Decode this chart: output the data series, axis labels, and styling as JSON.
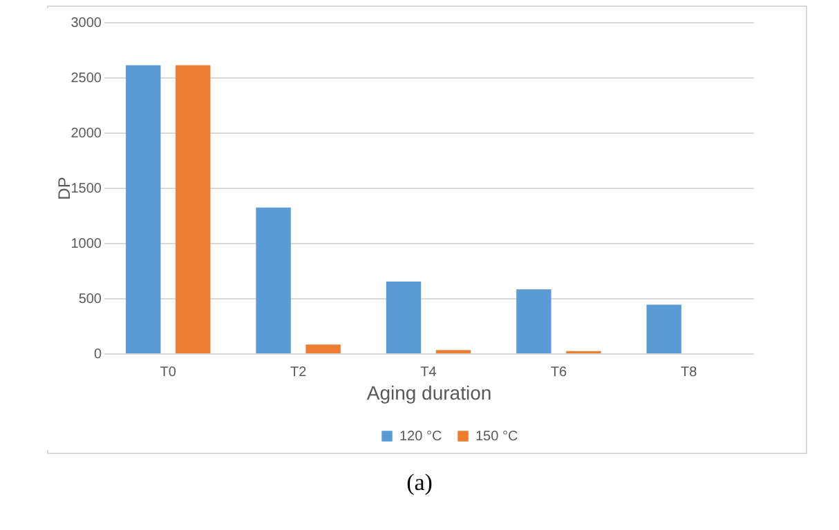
{
  "chart_data": {
    "type": "bar",
    "xlabel": "Aging duration",
    "ylabel": "DP",
    "categories": [
      "T0",
      "T2",
      "T4",
      "T6",
      "T8"
    ],
    "series": [
      {
        "name": "120 °C",
        "color": "#5b9bd5",
        "values": [
          2610,
          1320,
          650,
          580,
          440
        ]
      },
      {
        "name": "150 °C",
        "color": "#ed7d31",
        "values": [
          2610,
          80,
          30,
          20,
          null
        ]
      }
    ],
    "ylim": [
      0,
      3000
    ],
    "yticks": [
      0,
      500,
      1000,
      1500,
      2000,
      2500,
      3000
    ],
    "grid": "y",
    "legend": "bottom",
    "annotations": [
      "(a)"
    ]
  }
}
